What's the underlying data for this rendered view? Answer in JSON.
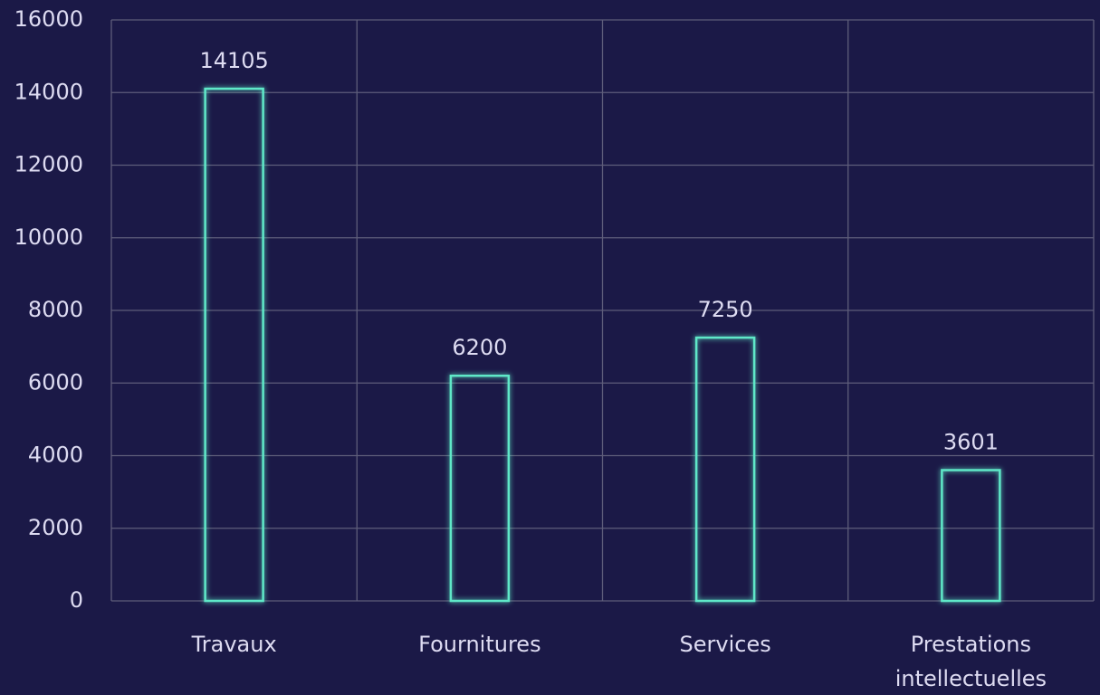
{
  "chart_data": {
    "type": "bar",
    "categories": [
      "Travaux",
      "Fournitures",
      "Services",
      "Prestations intellectuelles"
    ],
    "values": [
      14105,
      6200,
      7250,
      3601
    ],
    "color": "#5ee8c8",
    "ylim": [
      0,
      16000
    ],
    "yticks": [
      0,
      2000,
      4000,
      6000,
      8000,
      10000,
      12000,
      14000,
      16000
    ],
    "grid": true
  }
}
